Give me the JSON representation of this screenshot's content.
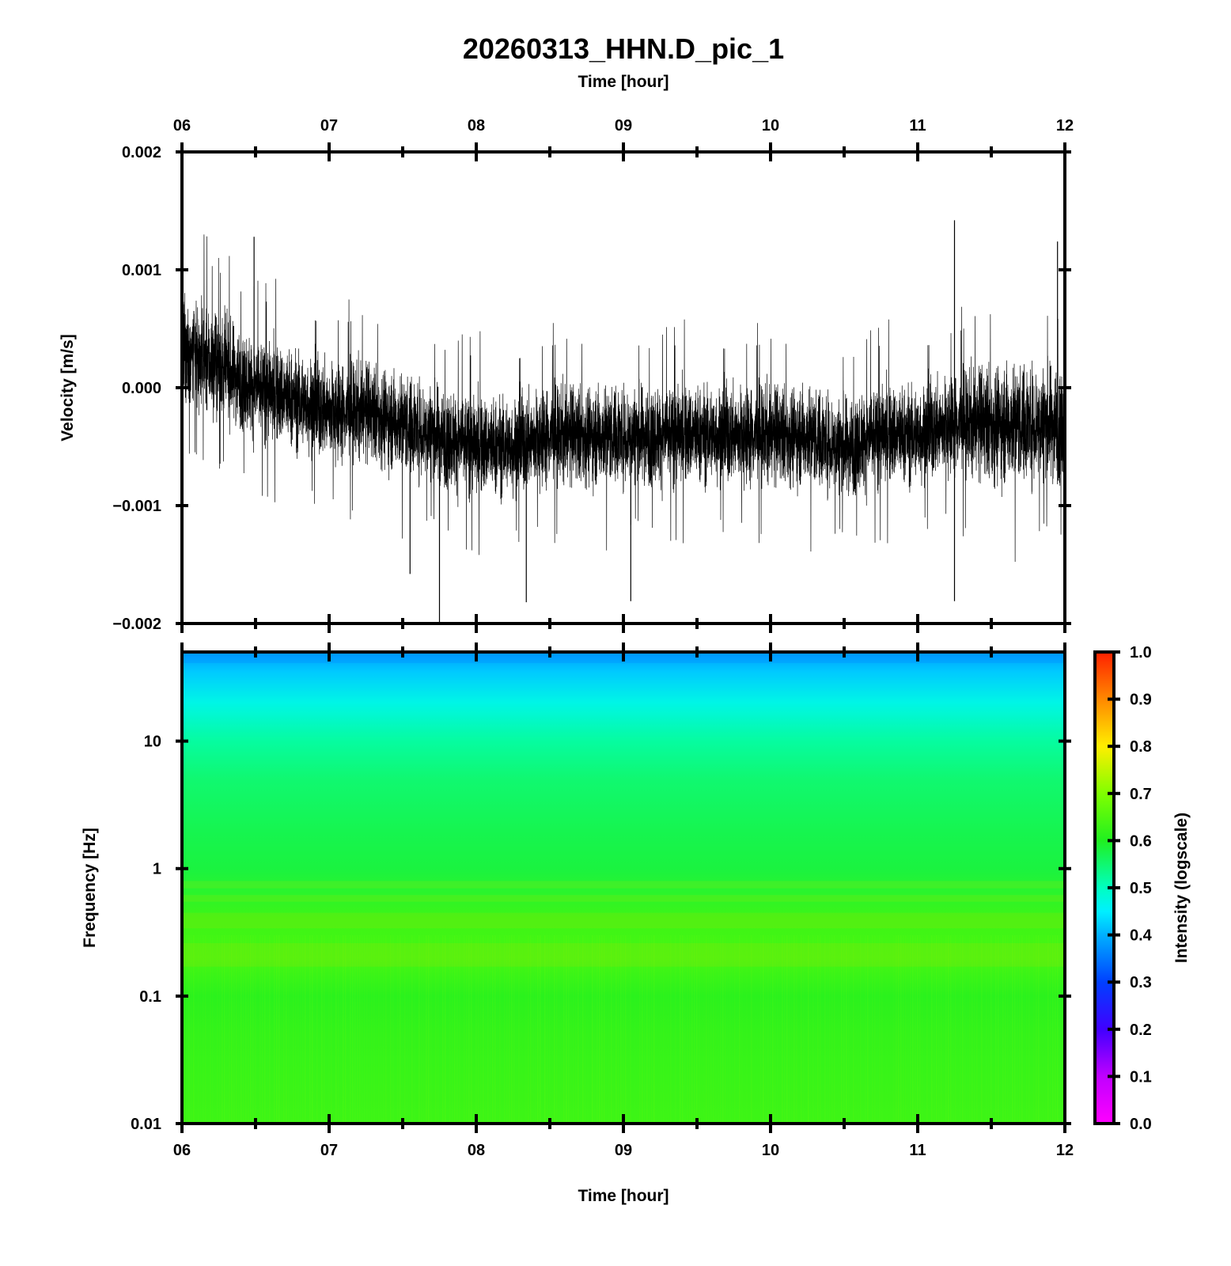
{
  "title": "20260313_HHN.D_pic_1",
  "colors": {
    "trace": "#000000",
    "frame": "#000000",
    "background": "#ffffff",
    "spectrogram_low": "#22f01a",
    "spectrogram_mid": "#00f2a8",
    "spectrogram_high": "#00aaff"
  },
  "chart_data": [
    {
      "type": "line",
      "name": "waveform",
      "top_xlabel": "Time [hour]",
      "ylabel": "Velocity [m/s]",
      "x_ticks": [
        "06",
        "07",
        "08",
        "09",
        "10",
        "11",
        "12"
      ],
      "x_minor_per_major": 2,
      "xlim_hours": [
        6,
        12
      ],
      "ylim": [
        -0.002,
        0.002
      ],
      "y_ticks": [
        {
          "value": 0.002,
          "label": "0.002"
        },
        {
          "value": 0.001,
          "label": "0.001"
        },
        {
          "value": 0.0,
          "label": "0.000"
        },
        {
          "value": -0.001,
          "label": "−0.001"
        },
        {
          "value": -0.002,
          "label": "−0.002"
        }
      ],
      "envelope": {
        "hour": [
          6.0,
          6.25,
          6.5,
          6.75,
          7.0,
          7.25,
          7.5,
          7.75,
          8.0,
          8.25,
          8.5,
          8.75,
          9.0,
          9.25,
          9.5,
          9.75,
          10.0,
          10.25,
          10.5,
          10.75,
          11.0,
          11.25,
          11.5,
          11.75,
          12.0
        ],
        "center": [
          0.0003,
          0.0002,
          0.0,
          -0.0001,
          -0.0002,
          -0.0002,
          -0.0003,
          -0.0004,
          -0.0005,
          -0.0005,
          -0.0004,
          -0.0004,
          -0.0004,
          -0.0004,
          -0.0004,
          -0.0004,
          -0.0004,
          -0.0004,
          -0.0005,
          -0.0004,
          -0.0004,
          -0.0003,
          -0.0003,
          -0.0003,
          -0.0003
        ],
        "halfwidth": [
          0.0006,
          0.0005,
          0.0005,
          0.0005,
          0.0005,
          0.0005,
          0.0005,
          0.0005,
          0.0005,
          0.0005,
          0.0005,
          0.0005,
          0.0005,
          0.0005,
          0.0005,
          0.0005,
          0.0005,
          0.0005,
          0.0005,
          0.0005,
          0.0005,
          0.0005,
          0.0006,
          0.0006,
          0.0006
        ]
      },
      "spikes": [
        {
          "hour": 6.49,
          "value": 0.00128
        },
        {
          "hour": 7.75,
          "value": -0.002
        },
        {
          "hour": 7.55,
          "value": -0.00158
        },
        {
          "hour": 8.34,
          "value": -0.00182
        },
        {
          "hour": 9.05,
          "value": -0.00181
        },
        {
          "hour": 11.25,
          "value": 0.00142
        },
        {
          "hour": 11.25,
          "value": -0.00181
        },
        {
          "hour": 11.95,
          "value": 0.00124
        }
      ]
    },
    {
      "type": "heatmap",
      "name": "spectrogram",
      "xlabel": "Time [hour]",
      "ylabel": "Frequency [Hz]",
      "x_ticks": [
        "06",
        "07",
        "08",
        "09",
        "10",
        "11",
        "12"
      ],
      "xlim_hours": [
        6,
        12
      ],
      "y_scale": "log",
      "ylim": [
        0.01,
        50
      ],
      "y_ticks": [
        {
          "value": 0.01,
          "label": "0.01"
        },
        {
          "value": 0.1,
          "label": "0.1"
        },
        {
          "value": 1,
          "label": "1"
        },
        {
          "value": 10,
          "label": "10"
        }
      ],
      "intensity_profile": {
        "frequency_hz": [
          0.01,
          0.05,
          0.1,
          0.2,
          0.4,
          1,
          2,
          5,
          10,
          20,
          35,
          50
        ],
        "intensity": [
          0.63,
          0.62,
          0.61,
          0.64,
          0.63,
          0.58,
          0.57,
          0.55,
          0.52,
          0.47,
          0.42,
          0.38
        ]
      },
      "colorbar": {
        "label": "Intensity (logscale)",
        "range": [
          0.0,
          1.0
        ],
        "ticks": [
          "0.0",
          "0.1",
          "0.2",
          "0.3",
          "0.4",
          "0.5",
          "0.6",
          "0.7",
          "0.8",
          "0.9",
          "1.0"
        ],
        "colormap": "rainbow"
      }
    }
  ]
}
